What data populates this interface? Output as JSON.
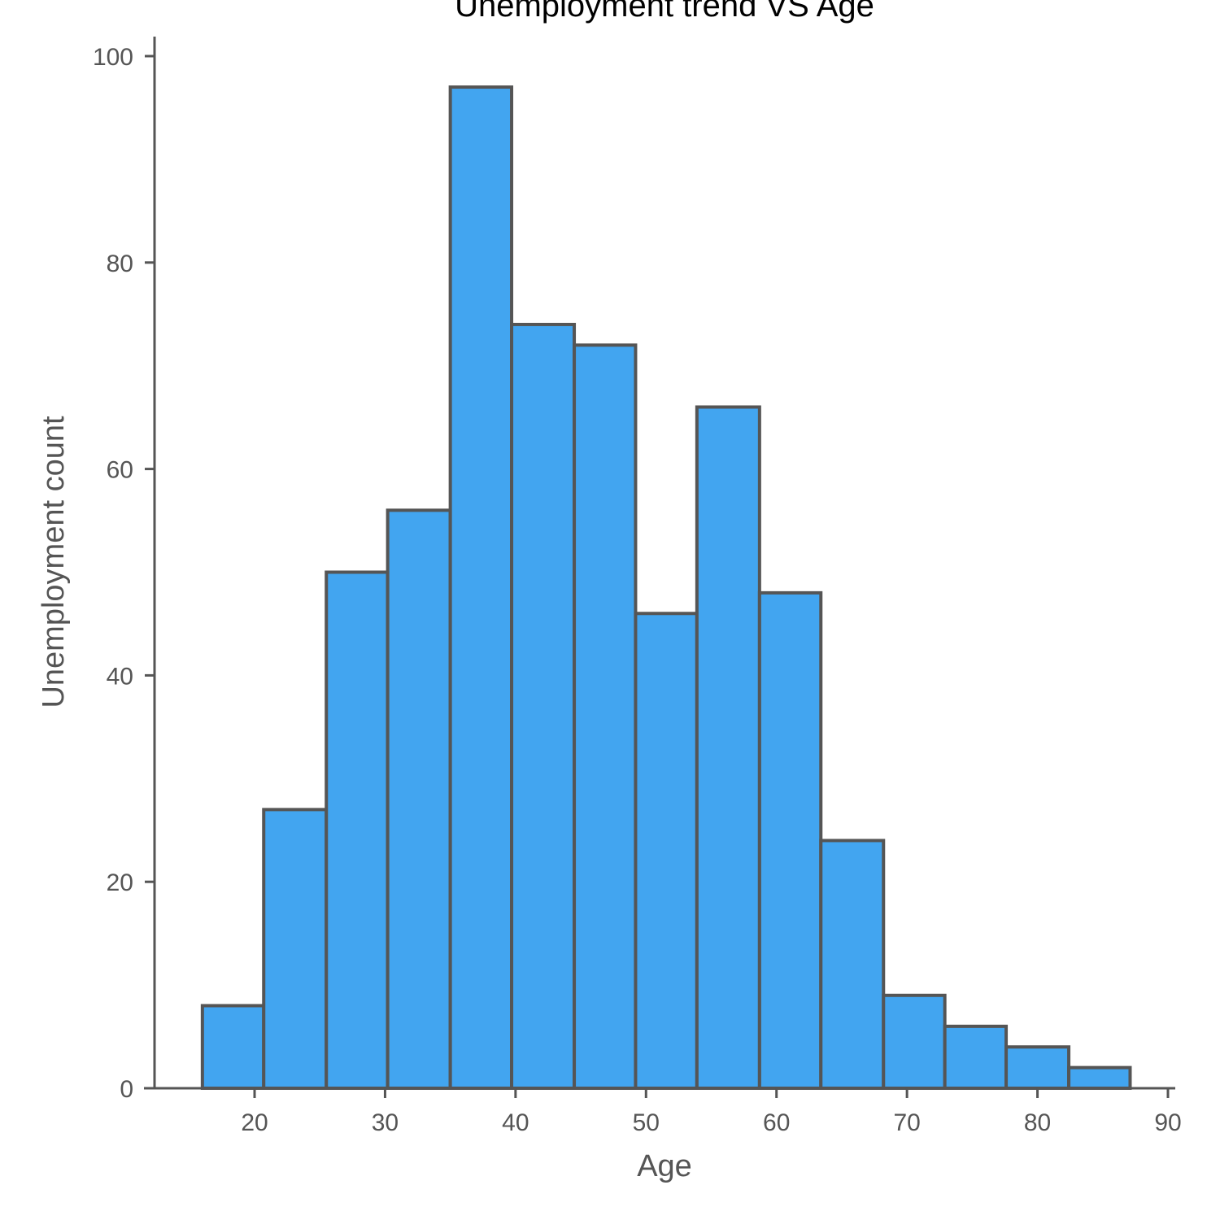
{
  "chart_data": {
    "type": "bar",
    "title": "Unemployment trend VS Age",
    "xlabel": "Age",
    "ylabel": "Unemployment count",
    "xlim": [
      12,
      91
    ],
    "ylim": [
      0,
      102
    ],
    "grid": false,
    "bar_color": "#42a5f0",
    "edge_color": "#555555",
    "x_ticks": [
      20,
      30,
      40,
      50,
      60,
      70,
      80,
      90
    ],
    "y_ticks": [
      0,
      20,
      40,
      60,
      80,
      100
    ],
    "bins": [
      {
        "start": 16.0,
        "end": 20.7,
        "value": 8
      },
      {
        "start": 20.7,
        "end": 25.5,
        "value": 27
      },
      {
        "start": 25.5,
        "end": 30.2,
        "value": 50
      },
      {
        "start": 30.2,
        "end": 35.0,
        "value": 56
      },
      {
        "start": 35.0,
        "end": 39.7,
        "value": 97
      },
      {
        "start": 39.7,
        "end": 44.5,
        "value": 74
      },
      {
        "start": 44.5,
        "end": 49.2,
        "value": 72
      },
      {
        "start": 49.2,
        "end": 53.9,
        "value": 46
      },
      {
        "start": 53.9,
        "end": 58.7,
        "value": 66
      },
      {
        "start": 58.7,
        "end": 63.4,
        "value": 48
      },
      {
        "start": 63.4,
        "end": 68.2,
        "value": 24
      },
      {
        "start": 68.2,
        "end": 72.9,
        "value": 9
      },
      {
        "start": 72.9,
        "end": 77.6,
        "value": 6
      },
      {
        "start": 77.6,
        "end": 82.4,
        "value": 4
      },
      {
        "start": 82.4,
        "end": 87.1,
        "value": 2
      }
    ]
  }
}
